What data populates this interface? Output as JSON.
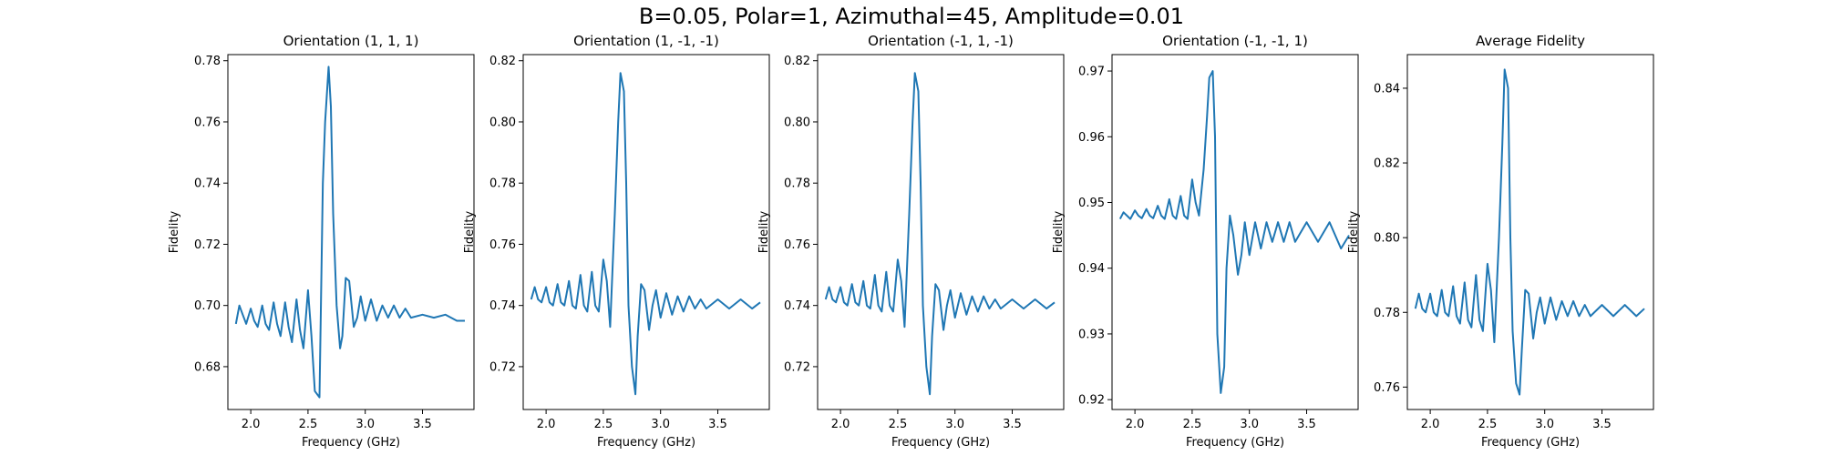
{
  "figure": {
    "suptitle": "B=0.05, Polar=1, Azimuthal=45, Amplitude=0.01"
  },
  "chart_data": [
    {
      "type": "line",
      "title": "Orientation (1, 1, 1)",
      "xlabel": "Frequency (GHz)",
      "ylabel": "Fidelity",
      "xlim": [
        1.8,
        3.95
      ],
      "ylim": [
        0.666,
        0.782
      ],
      "xticks": [
        2.0,
        2.5,
        3.0,
        3.5
      ],
      "xtick_labels": [
        "2.0",
        "2.5",
        "3.0",
        "3.5"
      ],
      "yticks": [
        0.68,
        0.7,
        0.72,
        0.74,
        0.76,
        0.78
      ],
      "ytick_labels": [
        "0.68",
        "0.70",
        "0.72",
        "0.74",
        "0.76",
        "0.78"
      ],
      "line_color": "#1f77b4",
      "series": [
        {
          "x": [
            1.87,
            1.9,
            1.93,
            1.96,
            2.0,
            2.03,
            2.06,
            2.1,
            2.13,
            2.16,
            2.2,
            2.23,
            2.26,
            2.3,
            2.33,
            2.36,
            2.4,
            2.43,
            2.46,
            2.5,
            2.53,
            2.56,
            2.6,
            2.63,
            2.65,
            2.68,
            2.7,
            2.72,
            2.75,
            2.78,
            2.8,
            2.83,
            2.86,
            2.9,
            2.93,
            2.96,
            3.0,
            3.05,
            3.1,
            3.15,
            3.2,
            3.25,
            3.3,
            3.35,
            3.4,
            3.5,
            3.6,
            3.7,
            3.8,
            3.87
          ],
          "y": [
            0.694,
            0.7,
            0.697,
            0.694,
            0.699,
            0.695,
            0.693,
            0.7,
            0.694,
            0.692,
            0.701,
            0.694,
            0.69,
            0.701,
            0.693,
            0.688,
            0.702,
            0.692,
            0.686,
            0.705,
            0.69,
            0.672,
            0.67,
            0.74,
            0.76,
            0.778,
            0.765,
            0.73,
            0.7,
            0.686,
            0.69,
            0.709,
            0.708,
            0.693,
            0.696,
            0.703,
            0.695,
            0.702,
            0.695,
            0.7,
            0.696,
            0.7,
            0.696,
            0.699,
            0.696,
            0.697,
            0.696,
            0.697,
            0.695,
            0.695
          ]
        }
      ]
    },
    {
      "type": "line",
      "title": "Orientation (1, -1, -1)",
      "xlabel": "Frequency (GHz)",
      "ylabel": "Fidelity",
      "xlim": [
        1.8,
        3.95
      ],
      "ylim": [
        0.706,
        0.822
      ],
      "xticks": [
        2.0,
        2.5,
        3.0,
        3.5
      ],
      "xtick_labels": [
        "2.0",
        "2.5",
        "3.0",
        "3.5"
      ],
      "yticks": [
        0.72,
        0.74,
        0.76,
        0.78,
        0.8,
        0.82
      ],
      "ytick_labels": [
        "0.72",
        "0.74",
        "0.76",
        "0.78",
        "0.80",
        "0.82"
      ],
      "line_color": "#1f77b4",
      "series": [
        {
          "x": [
            1.87,
            1.9,
            1.93,
            1.96,
            2.0,
            2.03,
            2.06,
            2.1,
            2.13,
            2.16,
            2.2,
            2.23,
            2.26,
            2.3,
            2.33,
            2.36,
            2.4,
            2.43,
            2.46,
            2.5,
            2.53,
            2.56,
            2.6,
            2.63,
            2.65,
            2.68,
            2.7,
            2.72,
            2.75,
            2.78,
            2.8,
            2.83,
            2.86,
            2.9,
            2.93,
            2.96,
            3.0,
            3.05,
            3.1,
            3.15,
            3.2,
            3.25,
            3.3,
            3.35,
            3.4,
            3.5,
            3.6,
            3.7,
            3.8,
            3.87
          ],
          "y": [
            0.742,
            0.746,
            0.742,
            0.741,
            0.746,
            0.741,
            0.74,
            0.747,
            0.741,
            0.74,
            0.748,
            0.74,
            0.739,
            0.75,
            0.74,
            0.738,
            0.751,
            0.74,
            0.738,
            0.755,
            0.748,
            0.733,
            0.77,
            0.8,
            0.816,
            0.81,
            0.78,
            0.74,
            0.72,
            0.711,
            0.73,
            0.747,
            0.745,
            0.732,
            0.74,
            0.745,
            0.736,
            0.744,
            0.737,
            0.743,
            0.738,
            0.743,
            0.739,
            0.742,
            0.739,
            0.742,
            0.739,
            0.742,
            0.739,
            0.741
          ]
        }
      ]
    },
    {
      "type": "line",
      "title": "Orientation (-1, 1, -1)",
      "xlabel": "Frequency (GHz)",
      "ylabel": "Fidelity",
      "xlim": [
        1.8,
        3.95
      ],
      "ylim": [
        0.706,
        0.822
      ],
      "xticks": [
        2.0,
        2.5,
        3.0,
        3.5
      ],
      "xtick_labels": [
        "2.0",
        "2.5",
        "3.0",
        "3.5"
      ],
      "yticks": [
        0.72,
        0.74,
        0.76,
        0.78,
        0.8,
        0.82
      ],
      "ytick_labels": [
        "0.72",
        "0.74",
        "0.76",
        "0.78",
        "0.80",
        "0.82"
      ],
      "line_color": "#1f77b4",
      "series": [
        {
          "x": [
            1.87,
            1.9,
            1.93,
            1.96,
            2.0,
            2.03,
            2.06,
            2.1,
            2.13,
            2.16,
            2.2,
            2.23,
            2.26,
            2.3,
            2.33,
            2.36,
            2.4,
            2.43,
            2.46,
            2.5,
            2.53,
            2.56,
            2.6,
            2.63,
            2.65,
            2.68,
            2.7,
            2.72,
            2.75,
            2.78,
            2.8,
            2.83,
            2.86,
            2.9,
            2.93,
            2.96,
            3.0,
            3.05,
            3.1,
            3.15,
            3.2,
            3.25,
            3.3,
            3.35,
            3.4,
            3.5,
            3.6,
            3.7,
            3.8,
            3.87
          ],
          "y": [
            0.742,
            0.746,
            0.742,
            0.741,
            0.746,
            0.741,
            0.74,
            0.747,
            0.741,
            0.74,
            0.748,
            0.74,
            0.739,
            0.75,
            0.74,
            0.738,
            0.751,
            0.74,
            0.738,
            0.755,
            0.748,
            0.733,
            0.77,
            0.8,
            0.816,
            0.81,
            0.78,
            0.74,
            0.72,
            0.711,
            0.73,
            0.747,
            0.745,
            0.732,
            0.74,
            0.745,
            0.736,
            0.744,
            0.737,
            0.743,
            0.738,
            0.743,
            0.739,
            0.742,
            0.739,
            0.742,
            0.739,
            0.742,
            0.739,
            0.741
          ]
        }
      ]
    },
    {
      "type": "line",
      "title": "Orientation (-1, -1, 1)",
      "xlabel": "Frequency (GHz)",
      "ylabel": "Fidelity",
      "xlim": [
        1.8,
        3.95
      ],
      "ylim": [
        0.9185,
        0.9725
      ],
      "xticks": [
        2.0,
        2.5,
        3.0,
        3.5
      ],
      "xtick_labels": [
        "2.0",
        "2.5",
        "3.0",
        "3.5"
      ],
      "yticks": [
        0.92,
        0.93,
        0.94,
        0.95,
        0.96,
        0.97
      ],
      "ytick_labels": [
        "0.92",
        "0.93",
        "0.94",
        "0.95",
        "0.96",
        "0.97"
      ],
      "line_color": "#1f77b4",
      "series": [
        {
          "x": [
            1.87,
            1.9,
            1.93,
            1.96,
            2.0,
            2.03,
            2.06,
            2.1,
            2.13,
            2.16,
            2.2,
            2.23,
            2.26,
            2.3,
            2.33,
            2.36,
            2.4,
            2.43,
            2.46,
            2.5,
            2.53,
            2.56,
            2.6,
            2.63,
            2.65,
            2.68,
            2.7,
            2.72,
            2.75,
            2.78,
            2.8,
            2.83,
            2.86,
            2.9,
            2.93,
            2.96,
            3.0,
            3.05,
            3.1,
            3.15,
            3.2,
            3.25,
            3.3,
            3.35,
            3.4,
            3.5,
            3.6,
            3.7,
            3.8,
            3.87
          ],
          "y": [
            0.9475,
            0.9485,
            0.948,
            0.9475,
            0.9488,
            0.948,
            0.9476,
            0.949,
            0.948,
            0.9476,
            0.9495,
            0.948,
            0.9475,
            0.9505,
            0.948,
            0.9475,
            0.951,
            0.948,
            0.9475,
            0.9535,
            0.95,
            0.948,
            0.955,
            0.963,
            0.969,
            0.97,
            0.96,
            0.93,
            0.921,
            0.925,
            0.94,
            0.948,
            0.945,
            0.939,
            0.942,
            0.947,
            0.942,
            0.947,
            0.943,
            0.947,
            0.944,
            0.947,
            0.944,
            0.947,
            0.944,
            0.947,
            0.944,
            0.947,
            0.943,
            0.945
          ]
        }
      ]
    },
    {
      "type": "line",
      "title": "Average Fidelity",
      "xlabel": "Frequency (GHz)",
      "ylabel": "Fidelity",
      "xlim": [
        1.8,
        3.95
      ],
      "ylim": [
        0.754,
        0.849
      ],
      "xticks": [
        2.0,
        2.5,
        3.0,
        3.5
      ],
      "xtick_labels": [
        "2.0",
        "2.5",
        "3.0",
        "3.5"
      ],
      "yticks": [
        0.76,
        0.78,
        0.8,
        0.82,
        0.84
      ],
      "ytick_labels": [
        "0.76",
        "0.78",
        "0.80",
        "0.82",
        "0.84"
      ],
      "line_color": "#1f77b4",
      "series": [
        {
          "x": [
            1.87,
            1.9,
            1.93,
            1.96,
            2.0,
            2.03,
            2.06,
            2.1,
            2.13,
            2.16,
            2.2,
            2.23,
            2.26,
            2.3,
            2.33,
            2.36,
            2.4,
            2.43,
            2.46,
            2.5,
            2.53,
            2.56,
            2.6,
            2.63,
            2.65,
            2.68,
            2.7,
            2.72,
            2.75,
            2.78,
            2.8,
            2.83,
            2.86,
            2.9,
            2.93,
            2.96,
            3.0,
            3.05,
            3.1,
            3.15,
            3.2,
            3.25,
            3.3,
            3.35,
            3.4,
            3.5,
            3.6,
            3.7,
            3.8,
            3.87
          ],
          "y": [
            0.781,
            0.785,
            0.781,
            0.78,
            0.785,
            0.78,
            0.779,
            0.786,
            0.78,
            0.779,
            0.787,
            0.779,
            0.777,
            0.788,
            0.778,
            0.776,
            0.79,
            0.778,
            0.775,
            0.793,
            0.786,
            0.772,
            0.8,
            0.825,
            0.845,
            0.84,
            0.8,
            0.775,
            0.761,
            0.758,
            0.77,
            0.786,
            0.785,
            0.773,
            0.78,
            0.784,
            0.777,
            0.784,
            0.778,
            0.783,
            0.779,
            0.783,
            0.779,
            0.782,
            0.779,
            0.782,
            0.779,
            0.782,
            0.779,
            0.781
          ]
        }
      ]
    }
  ]
}
